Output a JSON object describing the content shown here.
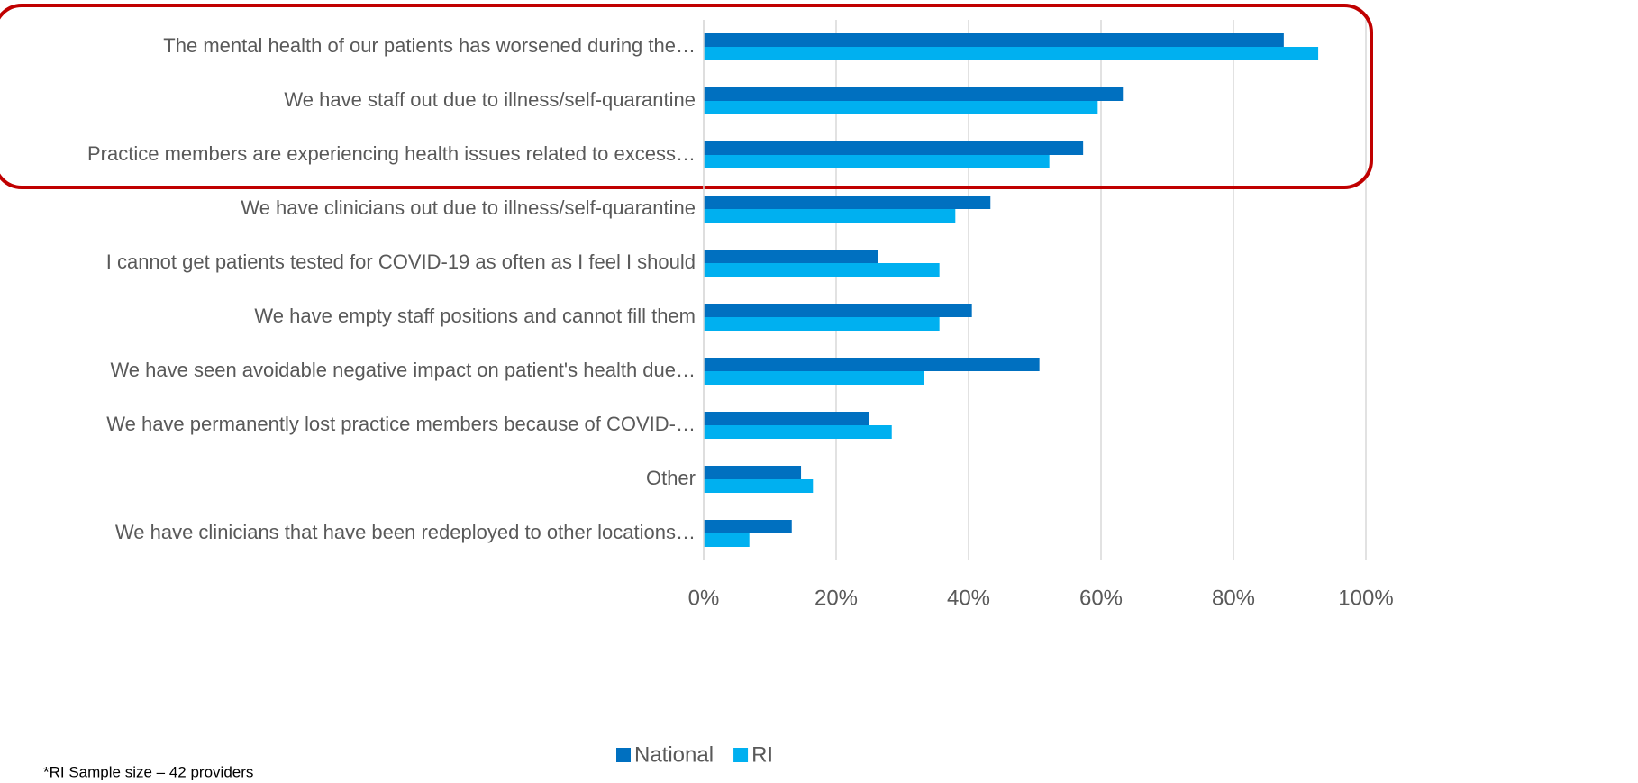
{
  "chart_data": {
    "type": "bar",
    "orientation": "horizontal",
    "categories": [
      "The mental health of our patients has worsened during the…",
      "We have staff out due to illness/self-quarantine",
      "Practice members are experiencing health issues related to excess…",
      "We have clinicians out due to illness/self-quarantine",
      "I cannot get patients tested for COVID-19 as often as I feel I should",
      "We have empty staff positions and cannot fill them",
      "We have seen avoidable negative impact on patient's health due…",
      "We have permanently lost practice members because of COVID-…",
      "Other",
      "We have clinicians that have been redeployed to other locations…"
    ],
    "series": [
      {
        "name": "National",
        "color": "#0070c0",
        "values": [
          87.6,
          63.3,
          57.3,
          43.3,
          26.3,
          40.5,
          50.7,
          25,
          14.7,
          13.3
        ]
      },
      {
        "name": "RI",
        "color": "#00b0f0",
        "values": [
          92.8,
          59.5,
          52.2,
          38,
          35.6,
          35.6,
          33.2,
          28.4,
          16.5,
          6.9
        ]
      }
    ],
    "xlim": [
      0,
      100
    ],
    "xticks": [
      {
        "value": 0,
        "label": "0%"
      },
      {
        "value": 20,
        "label": "20%"
      },
      {
        "value": 40,
        "label": "40%"
      },
      {
        "value": 60,
        "label": "60%"
      },
      {
        "value": 80,
        "label": "80%"
      },
      {
        "value": 100,
        "label": "100%"
      }
    ],
    "grid": true,
    "legend": "bottom",
    "footnote": "*RI Sample size – 42 providers"
  }
}
